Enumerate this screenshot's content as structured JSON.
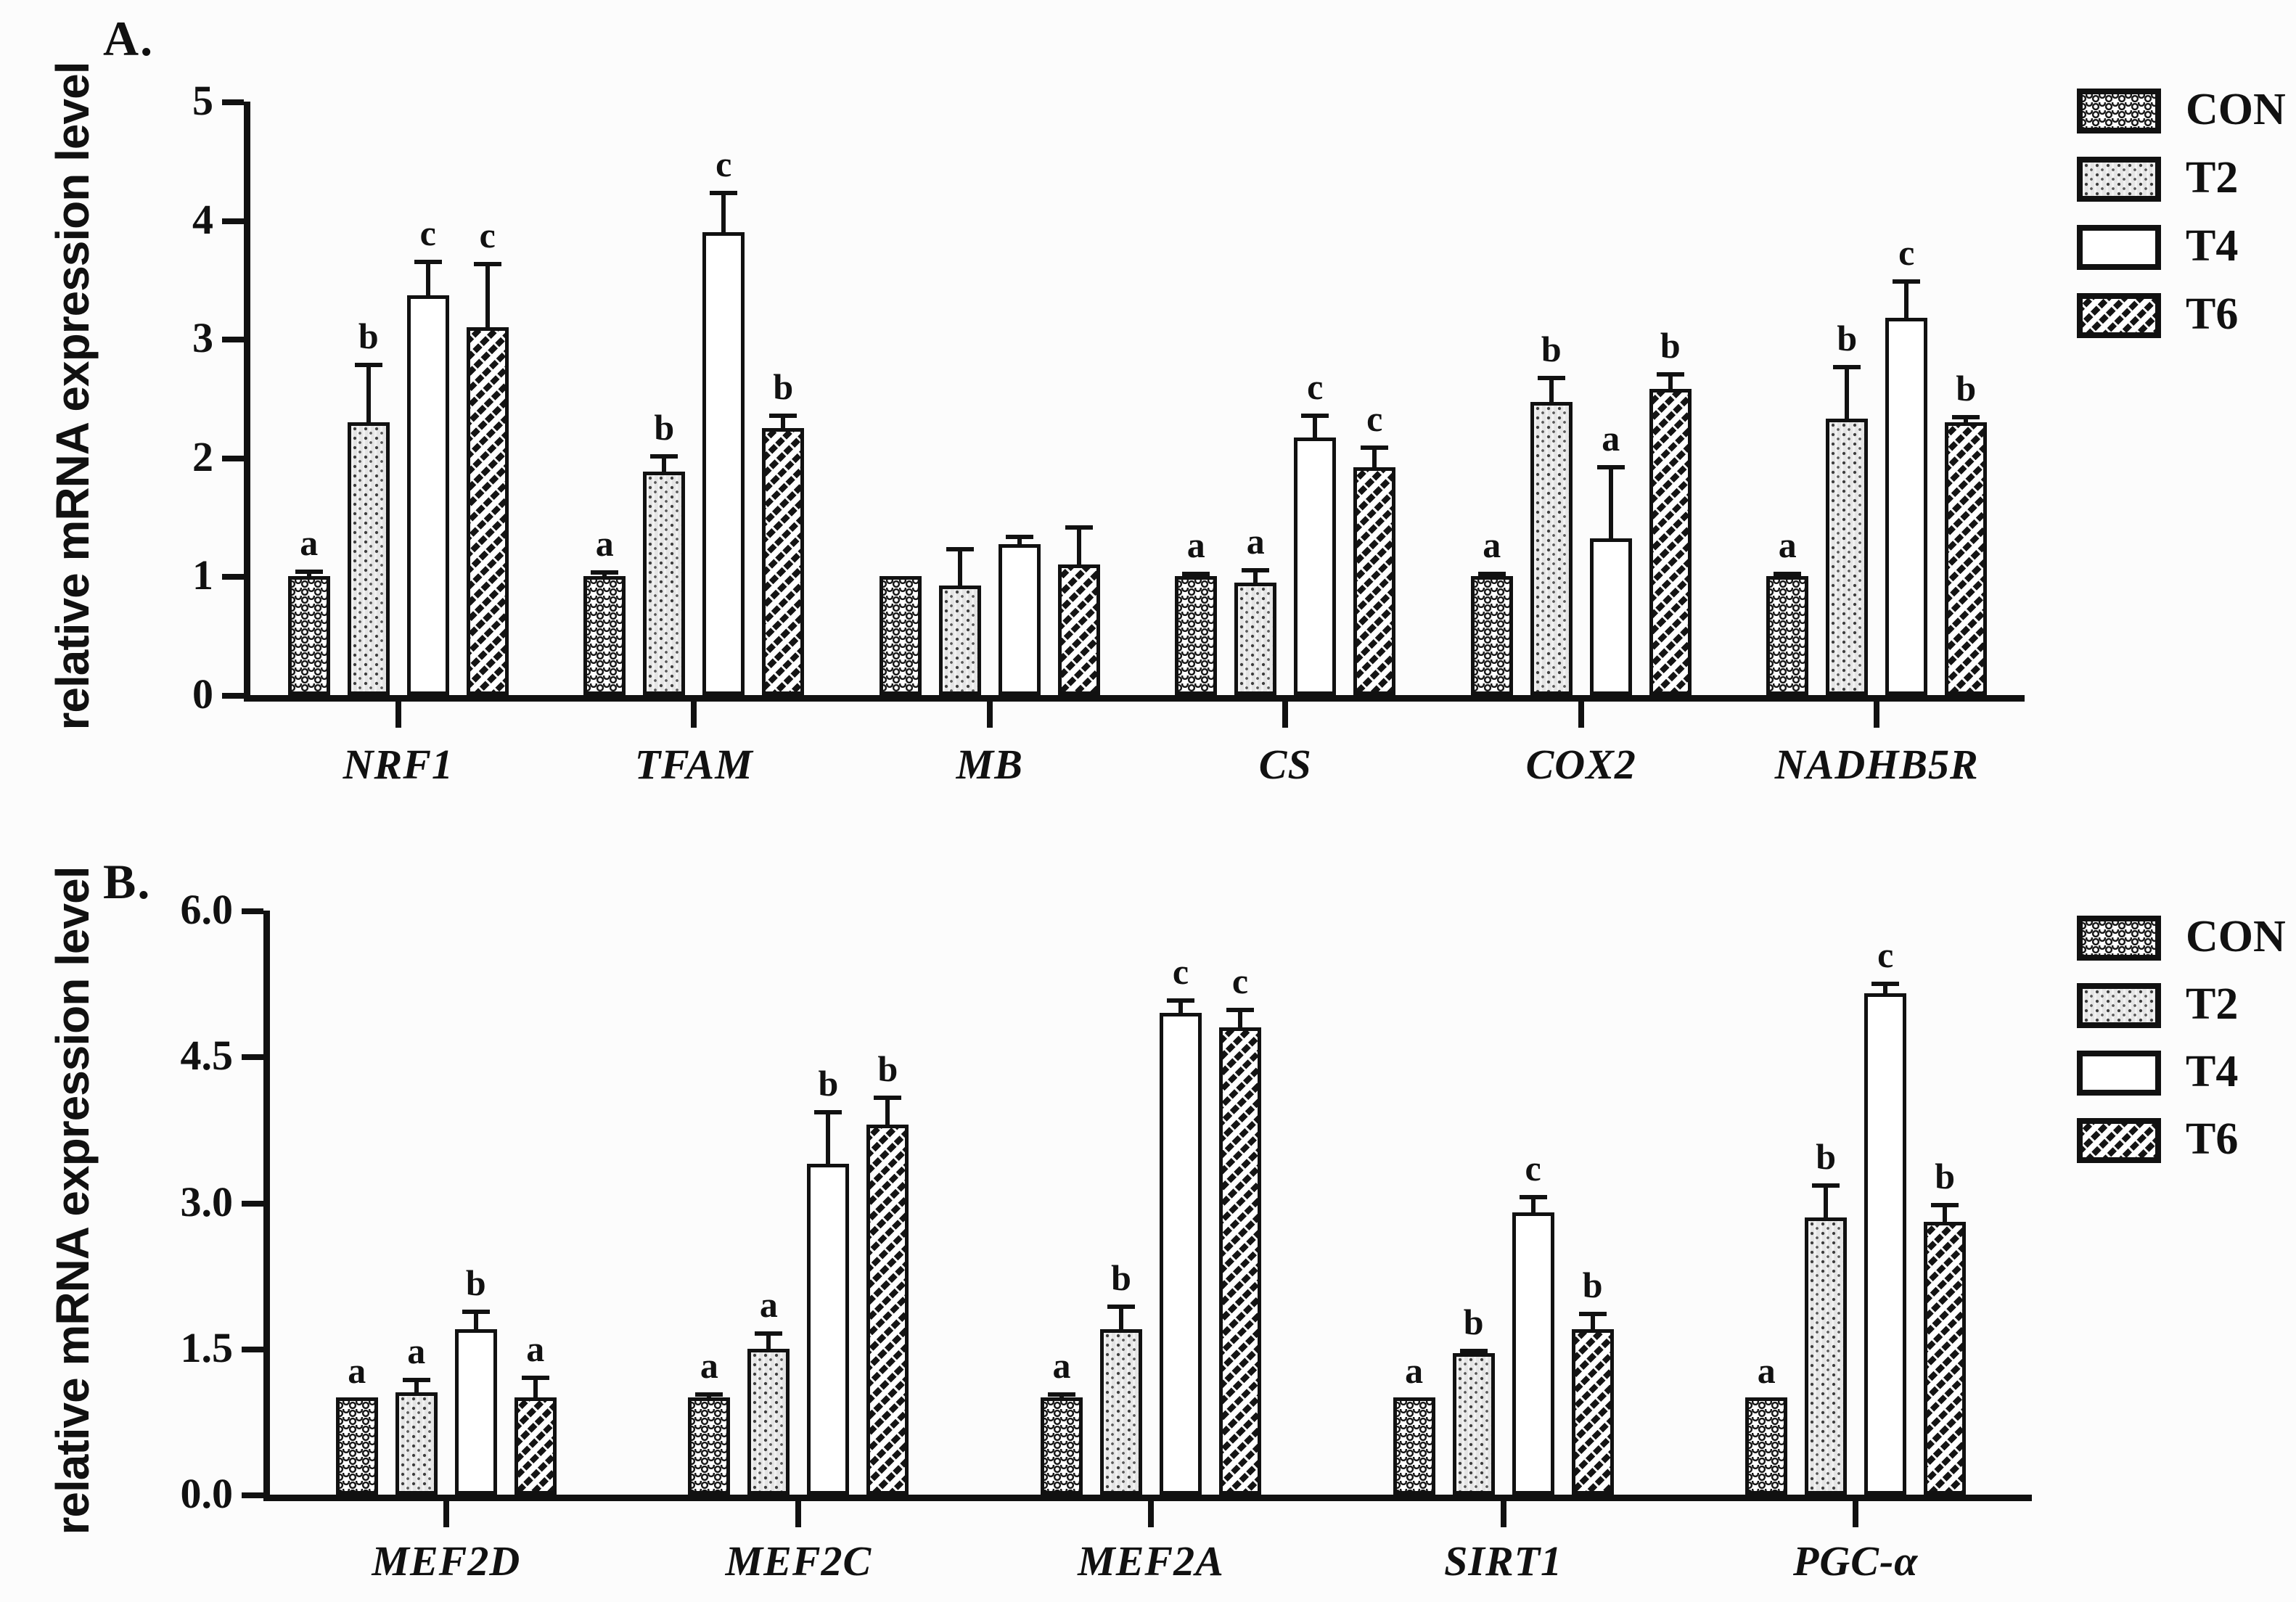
{
  "figure": {
    "background": "#fcfcfc",
    "ink_color": "#111111",
    "stipple_fill_color": "#e5e5e5"
  },
  "chart_data": [
    {
      "type": "bar",
      "panel_label": "A.",
      "ylabel": "relative mRNA expression level",
      "ylim": [
        0,
        5
      ],
      "ytick_values": [
        0,
        1,
        2,
        3,
        4,
        5
      ],
      "ytick_labels": [
        "0",
        "1",
        "2",
        "3",
        "4",
        "5"
      ],
      "grid": "off",
      "legend_position": "right",
      "categories": [
        "NRF1",
        "TFAM",
        "MB",
        "CS",
        "COX2",
        "NADHB5R"
      ],
      "series": [
        {
          "name": "CON",
          "key": "CON",
          "pattern": "scale-waves",
          "values": [
            1.0,
            1.0,
            1.0,
            1.0,
            1.0,
            1.0
          ],
          "errors": [
            0.06,
            0.05,
            0,
            0.04,
            0.04,
            0.04
          ],
          "letters": [
            "a",
            "a",
            "",
            "a",
            "a",
            "a"
          ]
        },
        {
          "name": "T2",
          "key": "T2",
          "pattern": "stipple-dots",
          "values": [
            2.3,
            1.88,
            0.92,
            0.95,
            2.47,
            2.33
          ],
          "errors": [
            0.5,
            0.15,
            0.33,
            0.12,
            0.22,
            0.45
          ],
          "letters": [
            "b",
            "b",
            "",
            "a",
            "b",
            "b"
          ]
        },
        {
          "name": "T4",
          "key": "T4",
          "pattern": "plain-white",
          "values": [
            3.37,
            3.9,
            1.27,
            2.17,
            1.32,
            3.18
          ],
          "errors": [
            0.3,
            0.35,
            0.08,
            0.2,
            0.62,
            0.32
          ],
          "letters": [
            "c",
            "c",
            "",
            "c",
            "a",
            "c"
          ]
        },
        {
          "name": "T6",
          "key": "T6",
          "pattern": "diagonal-stripes",
          "values": [
            3.1,
            2.25,
            1.1,
            1.92,
            2.58,
            2.3
          ],
          "errors": [
            0.55,
            0.12,
            0.33,
            0.18,
            0.14,
            0.06
          ],
          "letters": [
            "c",
            "b",
            "",
            "c",
            "b",
            "b"
          ]
        }
      ]
    },
    {
      "type": "bar",
      "panel_label": "B.",
      "ylabel": "relative mRNA expression level",
      "ylim": [
        0,
        6
      ],
      "ytick_values": [
        0,
        1.5,
        3.0,
        4.5,
        6.0
      ],
      "ytick_labels": [
        "0.0",
        "1.5",
        "3.0",
        "4.5",
        "6.0"
      ],
      "grid": "off",
      "legend_position": "right",
      "categories": [
        "MEF2D",
        "MEF2C",
        "MEF2A",
        "SIRT1",
        "PGC-α"
      ],
      "series": [
        {
          "name": "CON",
          "key": "CON",
          "pattern": "scale-waves",
          "values": [
            1.0,
            1.0,
            1.0,
            1.0,
            1.0
          ],
          "errors": [
            0,
            0.05,
            0.05,
            0,
            0
          ],
          "letters": [
            "a",
            "a",
            "a",
            "a",
            "a"
          ]
        },
        {
          "name": "T2",
          "key": "T2",
          "pattern": "stipple-dots",
          "values": [
            1.05,
            1.5,
            1.7,
            1.45,
            2.85
          ],
          "errors": [
            0.15,
            0.18,
            0.25,
            0.05,
            0.35
          ],
          "letters": [
            "a",
            "a",
            "b",
            "b",
            "b"
          ]
        },
        {
          "name": "T4",
          "key": "T4",
          "pattern": "plain-white",
          "values": [
            1.7,
            3.4,
            4.95,
            2.9,
            5.15
          ],
          "errors": [
            0.2,
            0.55,
            0.15,
            0.18,
            0.12
          ],
          "letters": [
            "b",
            "b",
            "c",
            "c",
            "c"
          ]
        },
        {
          "name": "T6",
          "key": "T6",
          "pattern": "diagonal-stripes",
          "values": [
            1.0,
            3.8,
            4.8,
            1.7,
            2.8
          ],
          "errors": [
            0.22,
            0.3,
            0.2,
            0.18,
            0.2
          ],
          "letters": [
            "a",
            "b",
            "c",
            "b",
            "b"
          ]
        }
      ]
    }
  ]
}
